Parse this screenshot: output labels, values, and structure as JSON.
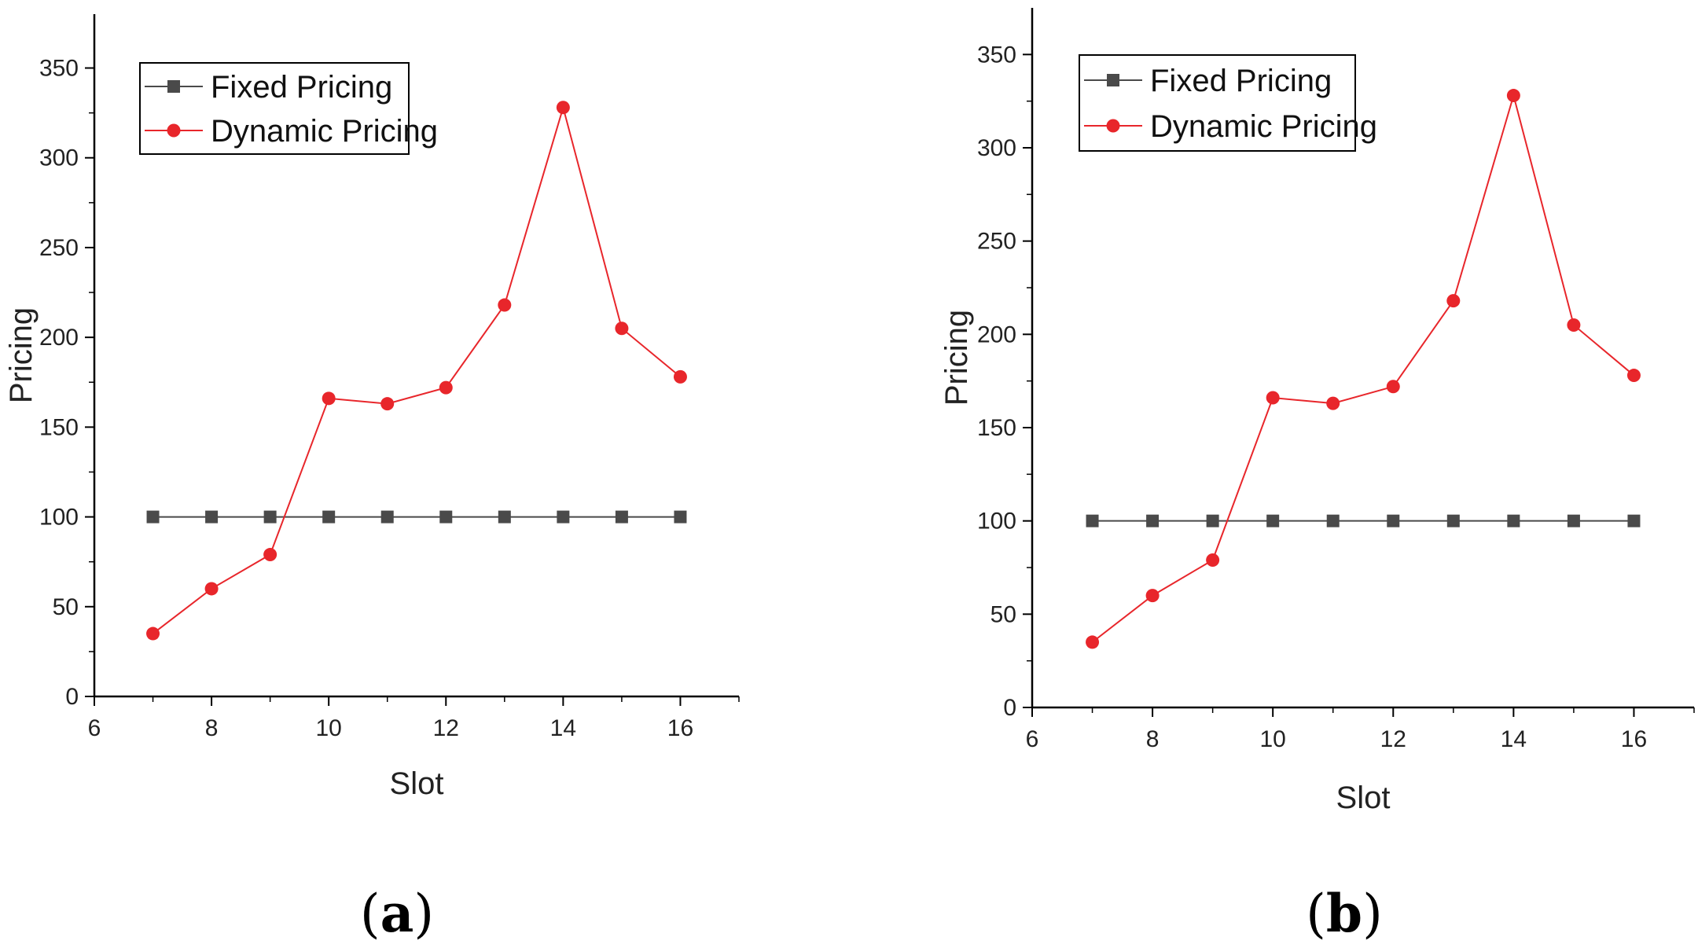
{
  "chart_data": [
    {
      "type": "line",
      "panel_label": "a",
      "xlabel": "Slot",
      "ylabel": "Pricing",
      "xlim": [
        6,
        17
      ],
      "ylim": [
        0,
        380
      ],
      "xticks": [
        6,
        8,
        10,
        12,
        14,
        16
      ],
      "yticks": [
        0,
        50,
        100,
        150,
        200,
        250,
        300,
        350
      ],
      "legend_position": "top-left",
      "x": [
        7,
        8,
        9,
        10,
        11,
        12,
        13,
        14,
        15,
        16
      ],
      "series": [
        {
          "name": "Fixed Pricing",
          "marker": "square",
          "color": "#4a4a4a",
          "values": [
            100,
            100,
            100,
            100,
            100,
            100,
            100,
            100,
            100,
            100
          ]
        },
        {
          "name": "Dynamic Pricing",
          "marker": "circle",
          "color": "#e8262b",
          "values": [
            35,
            60,
            79,
            166,
            163,
            172,
            218,
            328,
            205,
            178
          ]
        }
      ]
    },
    {
      "type": "line",
      "panel_label": "b",
      "xlabel": "Slot",
      "ylabel": "Pricing",
      "xlim": [
        6,
        17
      ],
      "ylim": [
        0,
        375
      ],
      "xticks": [
        6,
        8,
        10,
        12,
        14,
        16
      ],
      "yticks": [
        0,
        50,
        100,
        150,
        200,
        250,
        300,
        350
      ],
      "legend_position": "top-left",
      "x": [
        7,
        8,
        9,
        10,
        11,
        12,
        13,
        14,
        15,
        16
      ],
      "series": [
        {
          "name": "Fixed Pricing",
          "marker": "square",
          "color": "#4a4a4a",
          "values": [
            100,
            100,
            100,
            100,
            100,
            100,
            100,
            100,
            100,
            100
          ]
        },
        {
          "name": "Dynamic Pricing",
          "marker": "circle",
          "color": "#e8262b",
          "values": [
            35,
            60,
            79,
            166,
            163,
            172,
            218,
            328,
            205,
            178
          ]
        }
      ]
    }
  ]
}
